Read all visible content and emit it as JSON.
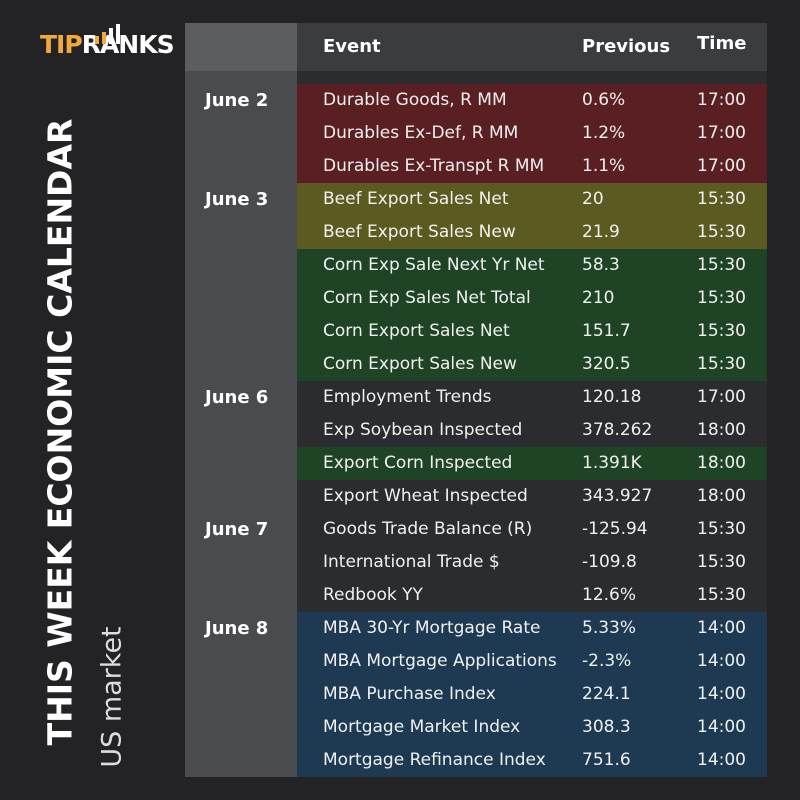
{
  "logo": {
    "part1": "TIP",
    "part2": "RANKS"
  },
  "title": "THIS WEEK ECONOMIC CALENDAR",
  "subtitle": "US market",
  "table": {
    "columns": [
      "Event",
      "Previous",
      "Time"
    ],
    "groups": [
      {
        "date": "June 2",
        "rows": [
          {
            "event": "Durable Goods, R MM",
            "previous": "0.6%",
            "time": "17:00",
            "color": "#5a1f23"
          },
          {
            "event": "Durables Ex-Def, R MM",
            "previous": "1.2%",
            "time": "17:00",
            "color": "#5a1f23"
          },
          {
            "event": "Durables Ex-Transpt R MM",
            "previous": "1.1%",
            "time": "17:00",
            "color": "#5a1f23"
          }
        ]
      },
      {
        "date": "June 3",
        "rows": [
          {
            "event": "Beef Export Sales Net",
            "previous": "20",
            "time": "15:30",
            "color": "#5b5a20"
          },
          {
            "event": "Beef Export Sales New",
            "previous": "21.9",
            "time": "15:30",
            "color": "#5b5a20"
          },
          {
            "event": "Corn Exp Sale Next Yr Net",
            "previous": "58.3",
            "time": "15:30",
            "color": "#1f4325"
          },
          {
            "event": "Corn Exp Sales Net Total",
            "previous": "210",
            "time": "15:30",
            "color": "#1f4325"
          },
          {
            "event": "Corn Export Sales Net",
            "previous": "151.7",
            "time": "15:30",
            "color": "#1f4325"
          },
          {
            "event": "Corn Export Sales New",
            "previous": "320.5",
            "time": "15:30",
            "color": "#1f4325"
          }
        ]
      },
      {
        "date": "June 6",
        "rows": [
          {
            "event": "Employment Trends",
            "previous": "120.18",
            "time": "17:00"
          },
          {
            "event": "Exp Soybean Inspected",
            "previous": "378.262",
            "time": "18:00"
          },
          {
            "event": "Export Corn Inspected",
            "previous": "1.391K",
            "time": "18:00",
            "color": "#1f4325"
          },
          {
            "event": "Export Wheat Inspected",
            "previous": "343.927",
            "time": "18:00"
          }
        ]
      },
      {
        "date": "June 7",
        "rows": [
          {
            "event": "Goods Trade Balance (R)",
            "previous": "-125.94",
            "time": "15:30"
          },
          {
            "event": "International Trade $",
            "previous": "-109.8",
            "time": "15:30"
          },
          {
            "event": "Redbook YY",
            "previous": "12.6%",
            "time": "15:30"
          }
        ]
      },
      {
        "date": "June 8",
        "rows": [
          {
            "event": "MBA 30-Yr Mortgage Rate",
            "previous": "5.33%",
            "time": "14:00",
            "color": "#1e3a52"
          },
          {
            "event": "MBA Mortgage Applications",
            "previous": "-2.3%",
            "time": "14:00",
            "color": "#1e3a52"
          },
          {
            "event": "MBA Purchase Index",
            "previous": "224.1",
            "time": "14:00",
            "color": "#1e3a52"
          },
          {
            "event": "Mortgage Market Index",
            "previous": "308.3",
            "time": "14:00",
            "color": "#1e3a52"
          },
          {
            "event": "Mortgage Refinance Index",
            "previous": "751.6",
            "time": "14:00",
            "color": "#1e3a52"
          }
        ]
      }
    ]
  }
}
